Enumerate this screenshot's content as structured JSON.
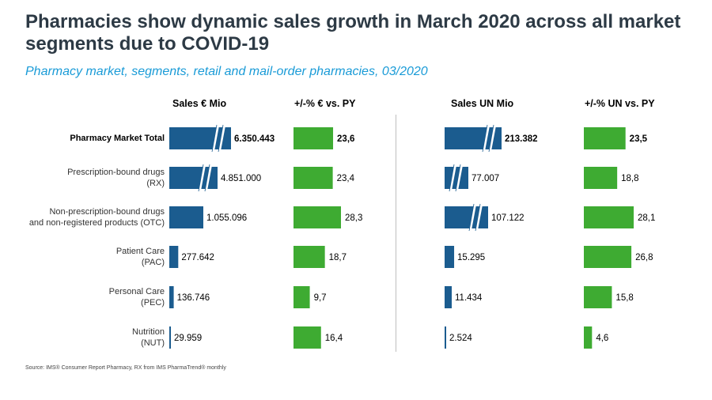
{
  "title": "Pharmacies show dynamic sales growth in March 2020 across all market segments due to COVID-19",
  "subtitle": "Pharmacy market, segments, retail and mail-order pharmacies, 03/2020",
  "source": "Source: IMS® Consumer Report Pharmacy, RX from IMS PharmaTrend® monthly",
  "colors": {
    "blue": "#1b5c8f",
    "green": "#3eab32",
    "title": "#2d3a45",
    "subtitle": "#1a9bd7"
  },
  "chart_data": {
    "type": "bar",
    "orientation": "horizontal",
    "categories": [
      [
        "Pharmacy Market Total"
      ],
      [
        "Prescription-bound drugs",
        "(RX)"
      ],
      [
        "Non-prescription-bound drugs",
        "and non-registered products (OTC)"
      ],
      [
        "Patient Care",
        "(PAC)"
      ],
      [
        "Personal Care",
        "(PEC)"
      ],
      [
        "Nutrition",
        "(NUT)"
      ]
    ],
    "panels": [
      {
        "name": "Sales € Mio",
        "color": "blue",
        "values": [
          6350.443,
          4851.0,
          1055.096,
          277.642,
          136.746,
          29.959
        ],
        "labels": [
          "6.350.443",
          "4.851.000",
          "1.055.096",
          "277.642",
          "136.746",
          "29.959"
        ],
        "broken": [
          true,
          true,
          false,
          false,
          false,
          false
        ],
        "first_bold": true
      },
      {
        "name": "+/-% € vs. PY",
        "color": "green",
        "values": [
          23.6,
          23.4,
          28.3,
          18.7,
          9.7,
          16.4
        ],
        "labels": [
          "23,6",
          "23,4",
          "28,3",
          "18,7",
          "9,7",
          "16,4"
        ],
        "broken": [
          false,
          false,
          false,
          false,
          false,
          false
        ],
        "first_bold": true
      },
      {
        "name": "Sales UN Mio",
        "color": "blue",
        "values": [
          213.382,
          77.007,
          107.122,
          15.295,
          11.434,
          2.524
        ],
        "labels": [
          "213.382",
          "77.007",
          "107.122",
          "15.295",
          "11.434",
          "2.524"
        ],
        "broken": [
          true,
          true,
          true,
          false,
          false,
          false
        ],
        "first_bold": true
      },
      {
        "name": "+/-% UN vs. PY",
        "color": "green",
        "values": [
          23.5,
          18.8,
          28.1,
          26.8,
          15.8,
          4.6
        ],
        "labels": [
          "23,5",
          "18,8",
          "28,1",
          "26,8",
          "15,8",
          "4,6"
        ],
        "broken": [
          false,
          false,
          false,
          false,
          false,
          false
        ],
        "first_bold": true
      }
    ]
  }
}
